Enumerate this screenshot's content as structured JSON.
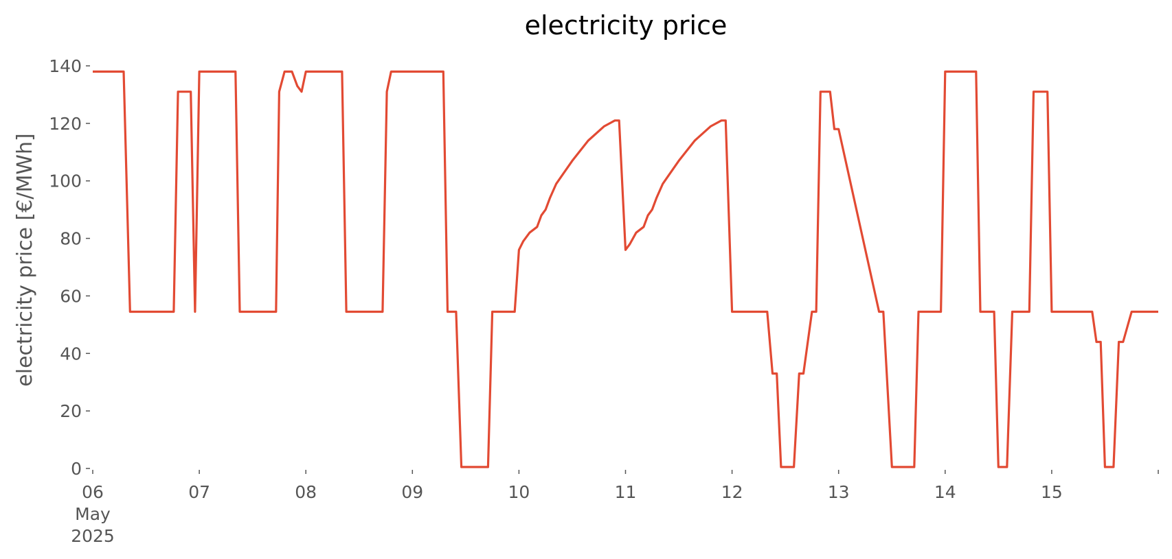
{
  "chart_data": {
    "type": "line",
    "title": "electricity price",
    "ylabel": "electricity price [€/MWh]",
    "xlabel": "",
    "xlim": [
      0,
      10
    ],
    "ylim": [
      0,
      140
    ],
    "yticks": [
      0,
      20,
      40,
      60,
      80,
      100,
      120,
      140
    ],
    "xticks": [
      {
        "value": 0,
        "lines": [
          "06",
          "May",
          "2025"
        ]
      },
      {
        "value": 1,
        "lines": [
          "07"
        ]
      },
      {
        "value": 2,
        "lines": [
          "08"
        ]
      },
      {
        "value": 3,
        "lines": [
          "09"
        ]
      },
      {
        "value": 4,
        "lines": [
          "10"
        ]
      },
      {
        "value": 5,
        "lines": [
          "11"
        ]
      },
      {
        "value": 6,
        "lines": [
          "12"
        ]
      },
      {
        "value": 7,
        "lines": [
          "13"
        ]
      },
      {
        "value": 8,
        "lines": [
          "14"
        ]
      },
      {
        "value": 9,
        "lines": [
          "15"
        ]
      },
      {
        "value": 10,
        "lines": [
          ""
        ]
      }
    ],
    "grid": false,
    "line_color": "#E24A33",
    "series": [
      {
        "x": [
          0,
          0.29,
          0.35,
          0.76,
          0.8,
          0.92,
          0.96,
          1.0,
          1.34,
          1.38,
          1.72,
          1.75,
          1.8,
          1.87,
          1.92,
          1.96,
          2.0,
          2.34,
          2.38,
          2.72,
          2.76,
          2.8,
          3.29,
          3.33,
          3.41,
          3.46,
          3.71,
          3.75,
          3.96,
          4.0,
          4.04,
          4.1,
          4.17,
          4.21,
          4.25,
          4.29,
          4.35,
          4.5,
          4.65,
          4.8,
          4.9,
          4.94,
          5.0,
          5.04,
          5.1,
          5.17,
          5.21,
          5.25,
          5.29,
          5.35,
          5.5,
          5.65,
          5.8,
          5.9,
          5.94,
          6.0,
          6.33,
          6.38,
          6.42,
          6.46,
          6.58,
          6.63,
          6.67,
          6.75,
          6.79,
          6.83,
          6.92,
          6.96,
          7.0,
          7.38,
          7.42,
          7.5,
          7.71,
          7.75,
          7.96,
          8.0,
          8.29,
          8.33,
          8.46,
          8.5,
          8.58,
          8.63,
          8.79,
          8.83,
          8.96,
          9.0,
          9.38,
          9.42,
          9.46,
          9.5,
          9.58,
          9.63,
          9.67,
          9.75,
          10.0
        ],
        "y": [
          138,
          138,
          54.5,
          54.5,
          131,
          131,
          54.5,
          138,
          138,
          54.5,
          54.5,
          131,
          138,
          138,
          133,
          131,
          138,
          138,
          54.5,
          54.5,
          131,
          138,
          138,
          54.5,
          54.5,
          0.5,
          0.5,
          54.5,
          54.5,
          76,
          79,
          82,
          84,
          88,
          90,
          94,
          99,
          107,
          114,
          119,
          121,
          121,
          76,
          78,
          82,
          84,
          88,
          90,
          94,
          99,
          107,
          114,
          119,
          121,
          121,
          54.5,
          54.5,
          33,
          33,
          0.5,
          0.5,
          33,
          33,
          54.5,
          54.5,
          131,
          131,
          118,
          118,
          54.5,
          54.5,
          0.5,
          0.5,
          54.5,
          54.5,
          138,
          138,
          54.5,
          54.5,
          0.5,
          0.5,
          54.5,
          54.5,
          131,
          131,
          54.5,
          54.5,
          44,
          44,
          0.5,
          0.5,
          44,
          44,
          54.5,
          54.5
        ]
      }
    ]
  }
}
